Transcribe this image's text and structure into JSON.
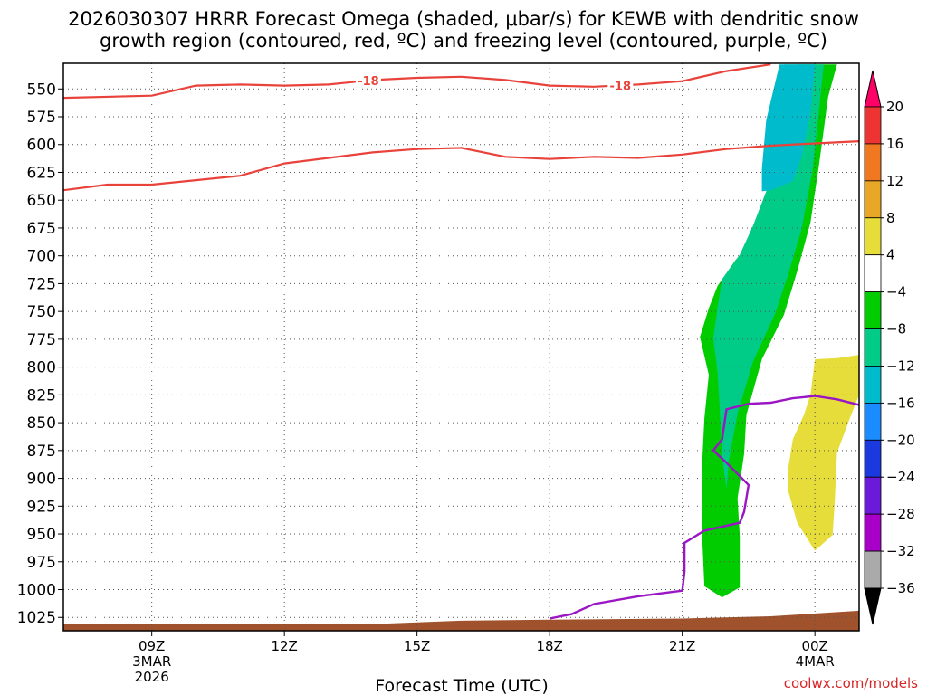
{
  "chart_data": {
    "type": "heatmap",
    "title_lines": [
      "2026030307 HRRR Forecast Omega (shaded, μbar/s) for KEWB with dendritic snow",
      "growth region (contoured, red, ºC) and freezing level (contoured, purple, ºC)"
    ],
    "xlabel": "Forecast Time (UTC)",
    "credit": "coolwx.com/models",
    "y_axis": {
      "inverted": true,
      "range": [
        1037,
        527
      ],
      "ticks": [
        550,
        575,
        600,
        625,
        650,
        675,
        700,
        725,
        750,
        775,
        800,
        825,
        850,
        875,
        900,
        925,
        950,
        975,
        1000,
        1025
      ]
    },
    "x_axis": {
      "range": [
        7,
        25
      ],
      "ticks": [
        {
          "x": 9,
          "lines": [
            "09Z",
            "3MAR",
            "2026"
          ]
        },
        {
          "x": 12,
          "lines": [
            "12Z"
          ]
        },
        {
          "x": 15,
          "lines": [
            "15Z"
          ]
        },
        {
          "x": 18,
          "lines": [
            "18Z"
          ]
        },
        {
          "x": 21,
          "lines": [
            "21Z"
          ]
        },
        {
          "x": 24,
          "lines": [
            "00Z",
            "4MAR"
          ]
        }
      ]
    },
    "grid": true,
    "colorbar": {
      "labels": [
        20,
        16,
        12,
        8,
        4,
        -4,
        -8,
        -12,
        -16,
        -20,
        -24,
        -28,
        -32,
        -36
      ],
      "colors": [
        "#ff0066",
        "#ee3333",
        "#f07820",
        "#e9a728",
        "#e6dd3a",
        "#ffffff",
        "#00cc00",
        "#00cc88",
        "#00bbcc",
        "#1a8cff",
        "#1a3adf",
        "#6a1ad8",
        "#a800c8",
        "#aaaaaa",
        "#000000"
      ]
    },
    "dgz_contours": [
      {
        "label": "-18",
        "points": [
          [
            7,
            558
          ],
          [
            9,
            556
          ],
          [
            10,
            547
          ],
          [
            11,
            546
          ],
          [
            12,
            547
          ],
          [
            13,
            546
          ],
          [
            14,
            542
          ],
          [
            15,
            540
          ],
          [
            16,
            539
          ],
          [
            17,
            542
          ],
          [
            18,
            547
          ],
          [
            19,
            548
          ],
          [
            20,
            546
          ],
          [
            21,
            543
          ],
          [
            22,
            534
          ],
          [
            23,
            528
          ]
        ]
      },
      {
        "label": "",
        "points": [
          [
            7,
            641
          ],
          [
            8,
            636
          ],
          [
            9,
            636
          ],
          [
            10,
            632
          ],
          [
            11,
            628
          ],
          [
            12,
            617
          ],
          [
            13,
            612
          ],
          [
            14,
            607
          ],
          [
            15,
            604
          ],
          [
            16,
            603
          ],
          [
            17,
            611
          ],
          [
            18,
            613
          ],
          [
            19,
            611
          ],
          [
            20,
            612
          ],
          [
            21,
            609
          ],
          [
            22,
            604
          ],
          [
            23,
            601
          ],
          [
            24,
            599
          ],
          [
            25,
            597
          ]
        ]
      }
    ],
    "freezing_level": {
      "label": "",
      "points": [
        [
          18,
          1026
        ],
        [
          18.5,
          1022
        ],
        [
          19,
          1013
        ],
        [
          20,
          1006
        ],
        [
          21,
          1001
        ],
        [
          21.05,
          984
        ],
        [
          21.05,
          958
        ],
        [
          21.5,
          947
        ],
        [
          22.3,
          940
        ],
        [
          22.4,
          930
        ],
        [
          22.5,
          906
        ],
        [
          22,
          886
        ],
        [
          21.7,
          875
        ],
        [
          21.9,
          865
        ],
        [
          22,
          838
        ],
        [
          22.5,
          833
        ],
        [
          23,
          832
        ],
        [
          23.5,
          828
        ],
        [
          24,
          826
        ],
        [
          24.5,
          829
        ],
        [
          25,
          834
        ]
      ]
    },
    "omega_fields": [
      {
        "value": -6,
        "color": "#00cc00",
        "polygon": [
          [
            22.2,
            528
          ],
          [
            23.6,
            528
          ],
          [
            23.3,
            583
          ],
          [
            23.1,
            636
          ],
          [
            22.8,
            670
          ],
          [
            22.6,
            686
          ],
          [
            22.2,
            704
          ],
          [
            21.8,
            727
          ],
          [
            21.6,
            747
          ],
          [
            21.4,
            773
          ],
          [
            21.6,
            807
          ],
          [
            21.5,
            846
          ],
          [
            21.45,
            887
          ],
          [
            21.45,
            924
          ],
          [
            21.45,
            952
          ],
          [
            21.5,
            997
          ],
          [
            21.9,
            1007
          ],
          [
            22.3,
            998
          ],
          [
            22.3,
            952
          ],
          [
            22.25,
            918
          ],
          [
            22.4,
            878
          ],
          [
            22.45,
            843
          ],
          [
            22.8,
            793
          ],
          [
            23.3,
            753
          ],
          [
            23.6,
            714
          ],
          [
            23.9,
            670
          ],
          [
            24.1,
            616
          ],
          [
            24.3,
            557
          ],
          [
            24.5,
            528
          ]
        ]
      },
      {
        "value": -10,
        "color": "#00cc88",
        "polygon": [
          [
            22.4,
            528
          ],
          [
            23.3,
            528
          ],
          [
            23.0,
            582
          ],
          [
            22.9,
            642
          ],
          [
            22.6,
            673
          ],
          [
            22.3,
            699
          ],
          [
            21.9,
            721
          ],
          [
            21.8,
            746
          ],
          [
            21.7,
            774
          ],
          [
            21.8,
            805
          ],
          [
            21.85,
            840
          ],
          [
            21.9,
            880
          ],
          [
            22.0,
            910
          ],
          [
            22.05,
            885
          ],
          [
            22.25,
            842
          ],
          [
            22.6,
            795
          ],
          [
            23.1,
            752
          ],
          [
            23.4,
            716
          ],
          [
            23.7,
            676
          ],
          [
            23.95,
            622
          ],
          [
            24.1,
            566
          ],
          [
            24.2,
            528
          ]
        ]
      },
      {
        "value": -14,
        "color": "#00bbcc",
        "polygon": [
          [
            22.5,
            528
          ],
          [
            23.2,
            528
          ],
          [
            22.9,
            578
          ],
          [
            22.8,
            622
          ],
          [
            22.8,
            642
          ],
          [
            23.0,
            641
          ],
          [
            23.5,
            633
          ],
          [
            23.7,
            611
          ],
          [
            23.9,
            572
          ],
          [
            24.0,
            528
          ]
        ]
      },
      {
        "value": 6,
        "color": "#e6dd3a",
        "polygon": [
          [
            24,
            793
          ],
          [
            24.5,
            792
          ],
          [
            25,
            789
          ],
          [
            25,
            825
          ],
          [
            24.8,
            845
          ],
          [
            24.5,
            877
          ],
          [
            24.45,
            921
          ],
          [
            24.4,
            951
          ],
          [
            24.0,
            965
          ],
          [
            23.6,
            940
          ],
          [
            23.4,
            912
          ],
          [
            23.4,
            890
          ],
          [
            23.5,
            865
          ],
          [
            23.75,
            843
          ],
          [
            23.9,
            825
          ]
        ]
      }
    ],
    "terrain": {
      "color": "#a0522d",
      "top_points": [
        [
          7,
          1031
        ],
        [
          14,
          1031
        ],
        [
          16,
          1028
        ],
        [
          18,
          1027
        ],
        [
          21,
          1026
        ],
        [
          23,
          1024
        ],
        [
          25,
          1019
        ]
      ]
    }
  }
}
